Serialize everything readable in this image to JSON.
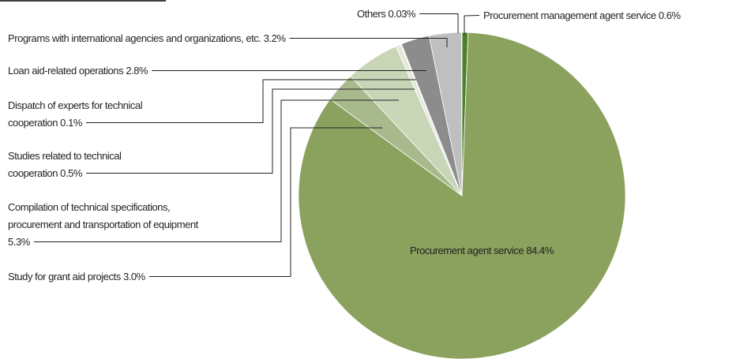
{
  "chart_data": {
    "type": "pie",
    "categories": [
      "Procurement management agent service",
      "Procurement agent service",
      "Study for grant aid projects",
      "Compilation of technical specifications, procurement and transportation of equipment",
      "Studies related to technical cooperation",
      "Dispatch of experts for technical cooperation",
      "Loan aid-related operations",
      "Programs with international agencies and organizations, etc.",
      "Others"
    ],
    "values": [
      0.6,
      84.4,
      3.0,
      5.3,
      0.5,
      0.1,
      2.8,
      3.2,
      0.03
    ],
    "value_labels": [
      "0.6%",
      "84.4%",
      "3.0%",
      "5.3%",
      "0.5%",
      "0.1%",
      "2.8%",
      "3.2%",
      "0.03%"
    ],
    "colors": [
      "#4f7f2a",
      "#8aa25e",
      "#a8ba8c",
      "#c9d5b7",
      "#e4e9da",
      "#f3f4ec",
      "#8c8c8c",
      "#bfbfbf",
      "#d9d9d9"
    ]
  }
}
